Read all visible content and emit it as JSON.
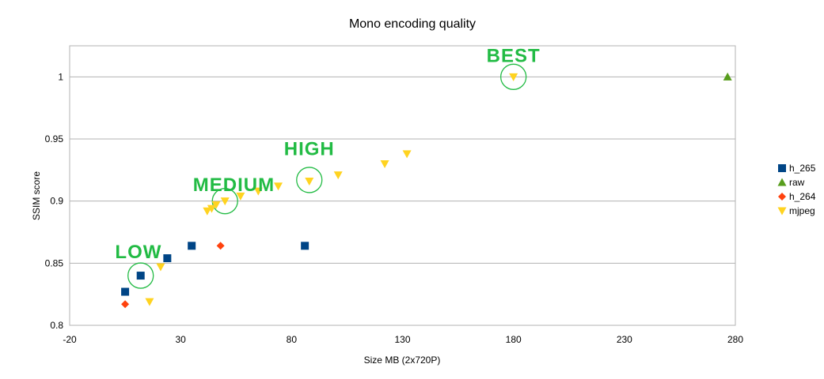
{
  "chart_data": {
    "type": "scatter",
    "title": "Mono encoding quality",
    "xlabel": "Size MB (2x720P)",
    "ylabel": "SSIM score",
    "xlim": [
      -20,
      280
    ],
    "ylim": [
      0.8,
      1.025
    ],
    "xticks": [
      -20,
      30,
      80,
      130,
      180,
      230,
      280
    ],
    "yticks": [
      0.8,
      0.85,
      0.9,
      0.95,
      1
    ],
    "xtick_labels": [
      "-20",
      "30",
      "80",
      "130",
      "180",
      "230",
      "280"
    ],
    "ytick_labels": [
      "0.8",
      "0.85",
      "0.9",
      "0.95",
      "1"
    ],
    "grid": "horizontal",
    "legend_position": "right",
    "series": [
      {
        "name": "h_265",
        "marker": "square",
        "color": "#004586",
        "points": [
          [
            5,
            0.827
          ],
          [
            12,
            0.84
          ],
          [
            24,
            0.854
          ],
          [
            35,
            0.864
          ],
          [
            86,
            0.864
          ]
        ]
      },
      {
        "name": "raw",
        "marker": "triangle-up",
        "color": "#579d1c",
        "points": [
          [
            276.5,
            1.0
          ]
        ]
      },
      {
        "name": "h_264",
        "marker": "diamond",
        "color": "#ff420e",
        "points": [
          [
            5,
            0.817
          ],
          [
            48,
            0.864
          ]
        ]
      },
      {
        "name": "mjpeg",
        "marker": "triangle-down",
        "color": "#ffd320",
        "points": [
          [
            16,
            0.819
          ],
          [
            21,
            0.847
          ],
          [
            42,
            0.892
          ],
          [
            44,
            0.894
          ],
          [
            46,
            0.897
          ],
          [
            50,
            0.9
          ],
          [
            57,
            0.904
          ],
          [
            65,
            0.908
          ],
          [
            74,
            0.912
          ],
          [
            88,
            0.916
          ],
          [
            101,
            0.921
          ],
          [
            122,
            0.93
          ],
          [
            132,
            0.938
          ],
          [
            180,
            1.0
          ]
        ]
      }
    ],
    "annotations": [
      {
        "text": "LOW",
        "x": 12,
        "y": 0.84,
        "label_x": 11,
        "label_y": 0.854
      },
      {
        "text": "MEDIUM",
        "x": 50,
        "y": 0.9,
        "label_x": 54,
        "label_y": 0.908
      },
      {
        "text": "HIGH",
        "x": 88,
        "y": 0.917,
        "label_x": 88,
        "label_y": 0.937
      },
      {
        "text": "BEST",
        "x": 180,
        "y": 1.0,
        "label_x": 180,
        "label_y": 1.012
      }
    ],
    "highlight_color": "#22bb44"
  }
}
